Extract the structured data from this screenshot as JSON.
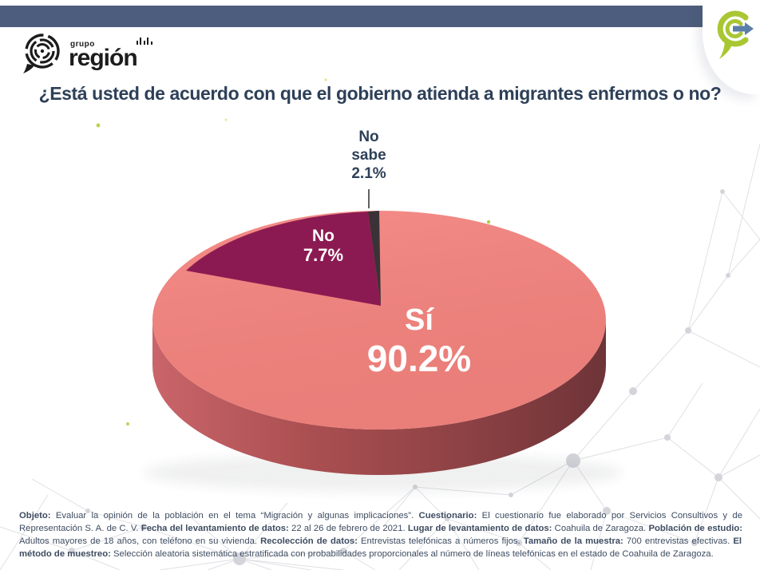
{
  "brand": {
    "grupo": "grupo",
    "region": "región"
  },
  "title": "¿Está usted de acuerdo con que el gobierno atienda a migrantes enfermos o no?",
  "colors": {
    "top_bar": "#4d5d7d",
    "navy_text": "#2e4058",
    "brand_lime": "#a9c733",
    "brand_blue": "#5b7ea9"
  },
  "chart_data": {
    "type": "pie",
    "style": "3d",
    "title": "¿Está usted de acuerdo con que el gobierno atienda a migrantes enfermos o no?",
    "categories": [
      "Sí",
      "No",
      "No sabe"
    ],
    "values": [
      90.2,
      7.7,
      2.1
    ],
    "unit": "%",
    "colors": [
      "#f4837e",
      "#8c1a52",
      "#3a3236"
    ],
    "legend_position": "none",
    "labels_on_slices": true
  },
  "pie_labels": {
    "si_name": "Sí",
    "si_value": "90.2%",
    "no_name": "No",
    "no_value": "7.7%",
    "nosabe_line1": "No",
    "nosabe_line2": "sabe",
    "nosabe_value": "2.1%"
  },
  "footer": {
    "segments": [
      {
        "bold": true,
        "text": "Objeto:"
      },
      {
        "bold": false,
        "text": " Evaluar la opinión de la población en el tema “Migración y algunas implicaciones”. "
      },
      {
        "bold": true,
        "text": "Cuestionario:"
      },
      {
        "bold": false,
        "text": " El cuestionario fue elaborado por Servicios Consultivos y de Representación S. A. de C. V. "
      },
      {
        "bold": true,
        "text": "Fecha del levantamiento de datos:"
      },
      {
        "bold": false,
        "text": " 22 al 26 de febrero de 2021.  "
      },
      {
        "bold": true,
        "text": "Lugar de levantamiento de datos:"
      },
      {
        "bold": false,
        "text": " Coahuila de Zaragoza. "
      },
      {
        "bold": true,
        "text": "Población de estudio:"
      },
      {
        "bold": false,
        "text": " Adultos mayores de 18 años, con teléfono en su vivienda. "
      },
      {
        "bold": true,
        "text": "Recolección de datos:"
      },
      {
        "bold": false,
        "text": " Entrevistas telefónicas a números fijos. "
      },
      {
        "bold": true,
        "text": "Tamaño de la muestra:"
      },
      {
        "bold": false,
        "text": " 700 entrevistas efectivas. "
      },
      {
        "bold": true,
        "text": "El método de muestreo:"
      },
      {
        "bold": false,
        "text": " Selección aleatoria sistemática estratificada con probabilidades proporcionales al  número de líneas telefónicas en el estado de Coahuila de Zaragoza."
      }
    ]
  }
}
